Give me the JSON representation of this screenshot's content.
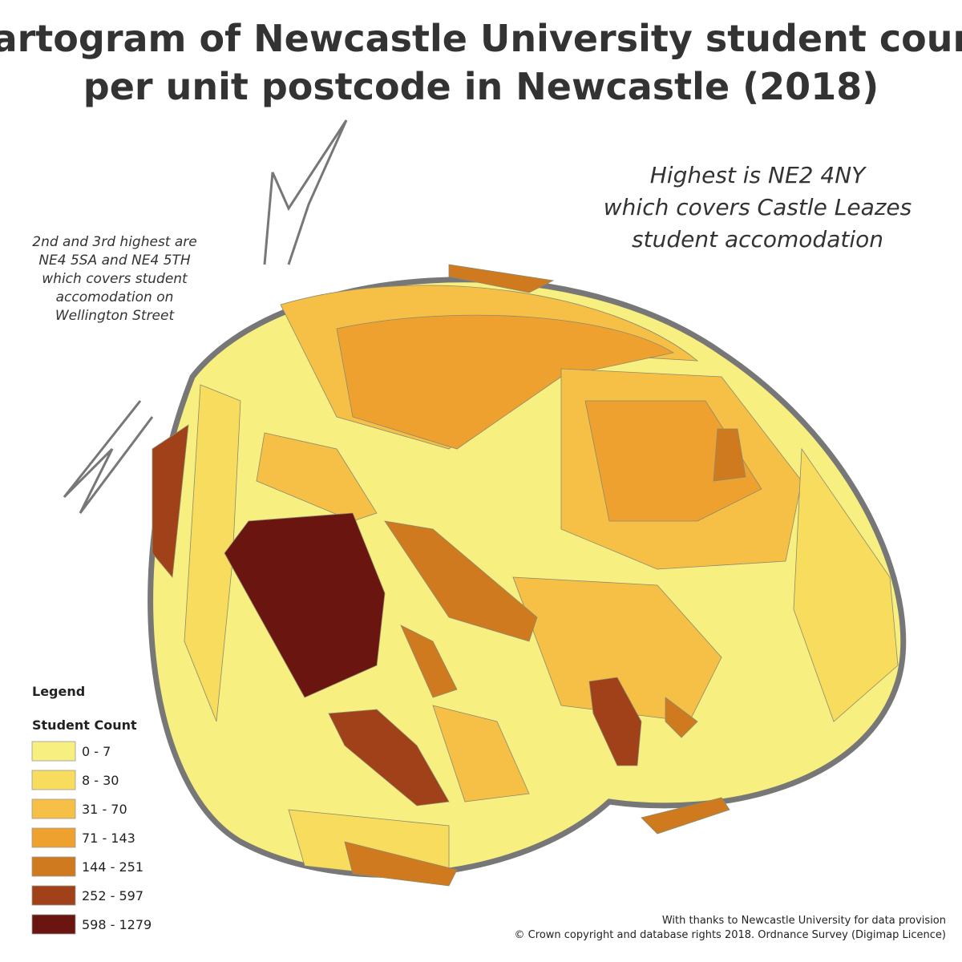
{
  "title": [
    "Cartogram of Newcastle University student count",
    "per unit postcode in Newcastle (2018)"
  ],
  "annotations": {
    "highest": [
      "Highest is NE2 4NY",
      "which covers Castle Leazes",
      "student accomodation"
    ],
    "second": [
      "2nd and 3rd highest are",
      "NE4 5SA and NE4 5TH",
      "which covers student",
      "accomodation on",
      "Wellington Street"
    ]
  },
  "legend": {
    "title": "Legend",
    "subtitle": "Student Count",
    "classes": [
      {
        "label": "0 - 7",
        "color": "#f7ef80"
      },
      {
        "label": "8 - 30",
        "color": "#f8dc5e"
      },
      {
        "label": "31 - 70",
        "color": "#f6c046"
      },
      {
        "label": "71 - 143",
        "color": "#efa12f"
      },
      {
        "label": "144 - 251",
        "color": "#cf7a1f"
      },
      {
        "label": "252 - 597",
        "color": "#a0411a"
      },
      {
        "label": "598 - 1279",
        "color": "#6a1510"
      }
    ]
  },
  "credits": [
    "With thanks to Newcastle University for data provision",
    "© Crown copyright and database rights 2018. Ordnance Survey (Digimap Licence)"
  ]
}
